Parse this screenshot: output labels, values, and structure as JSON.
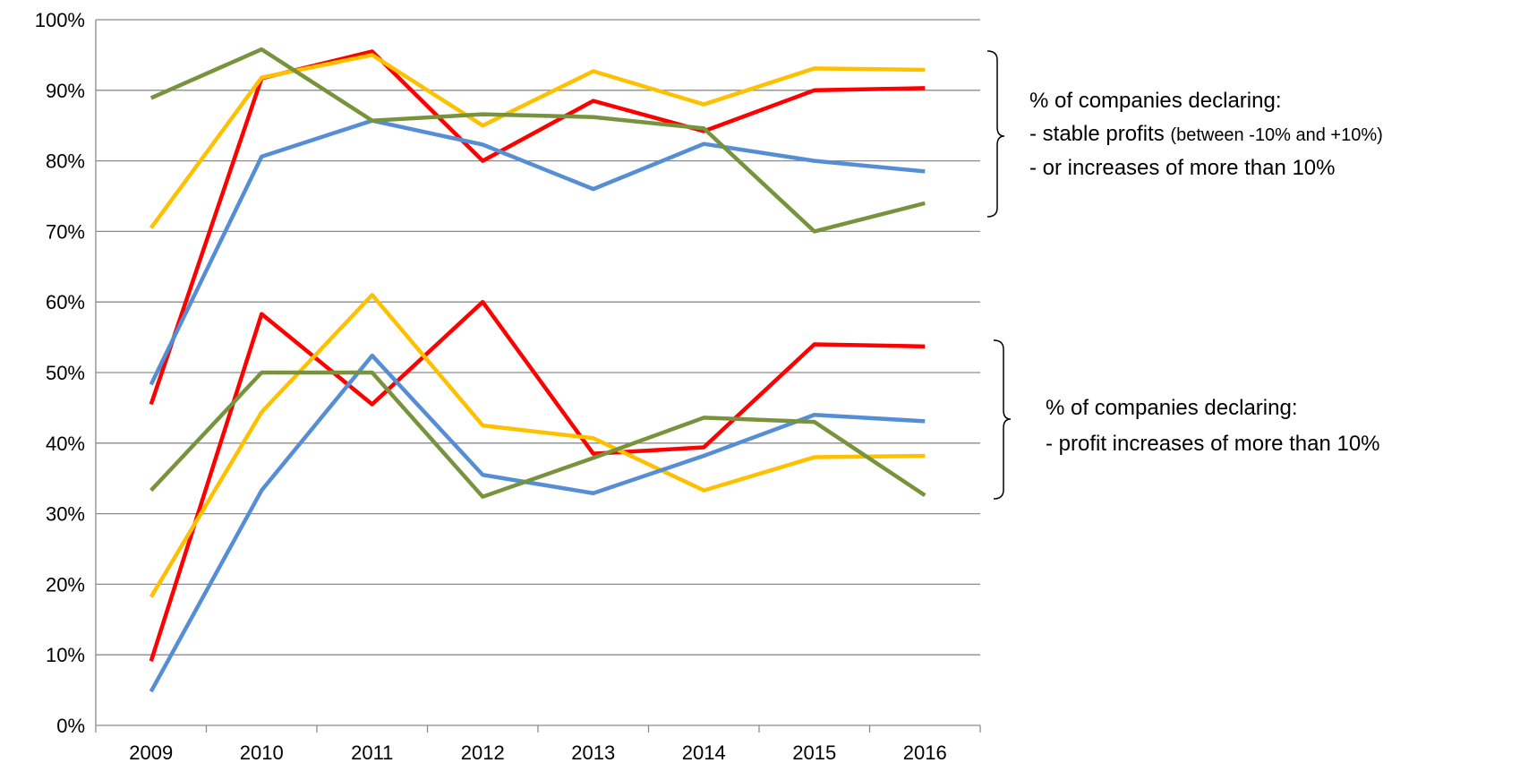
{
  "chart_data": {
    "type": "line",
    "categories": [
      "2009",
      "2010",
      "2011",
      "2012",
      "2013",
      "2014",
      "2015",
      "2016"
    ],
    "series": [
      {
        "color": "#ff0000",
        "values": [
          45.5,
          91.7,
          95.5,
          80,
          88.5,
          84.2,
          90,
          90.3
        ]
      },
      {
        "color": "#ffc000",
        "values": [
          70.5,
          91.8,
          95,
          85,
          92.7,
          88,
          93.1,
          92.9
        ]
      },
      {
        "color": "#558ed5",
        "values": [
          48.3,
          80.6,
          85.7,
          82.3,
          76,
          82.4,
          80,
          78.5
        ]
      },
      {
        "color": "#77933c",
        "values": [
          88.9,
          95.8,
          85.7,
          86.6,
          86.2,
          84.6,
          70,
          74
        ]
      },
      {
        "color": "#ff0000",
        "values": [
          9.1,
          58.3,
          45.5,
          60,
          38.5,
          39.4,
          54,
          53.7
        ]
      },
      {
        "color": "#ffc000",
        "values": [
          18.2,
          44.4,
          61,
          42.5,
          40.7,
          33.3,
          38,
          38.2
        ]
      },
      {
        "color": "#558ed5",
        "values": [
          4.8,
          33.3,
          52.4,
          35.5,
          32.9,
          38.2,
          44,
          43.1
        ]
      },
      {
        "color": "#77933c",
        "values": [
          33.3,
          50,
          50,
          32.4,
          37.9,
          43.6,
          43,
          32.6
        ]
      }
    ],
    "ylim": [
      0,
      100
    ],
    "yticks": [
      {
        "value": 0,
        "label": "0%"
      },
      {
        "value": 10,
        "label": "10%"
      },
      {
        "value": 20,
        "label": "20%"
      },
      {
        "value": 30,
        "label": "30%"
      },
      {
        "value": 40,
        "label": "40%"
      },
      {
        "value": 50,
        "label": "50%"
      },
      {
        "value": 60,
        "label": "60%"
      },
      {
        "value": 70,
        "label": "70%"
      },
      {
        "value": 80,
        "label": "80%"
      },
      {
        "value": 90,
        "label": "90%"
      },
      {
        "value": 100,
        "label": "100%"
      }
    ],
    "grid": true,
    "annotations": [
      {
        "lines": [
          "% of companies declaring:",
          "- stable profits",
          "- or increases of more than 10%"
        ],
        "note": "(between -10% and +10%)"
      },
      {
        "lines": [
          "% of companies declaring:",
          "- profit increases of more than 10%"
        ]
      }
    ]
  }
}
